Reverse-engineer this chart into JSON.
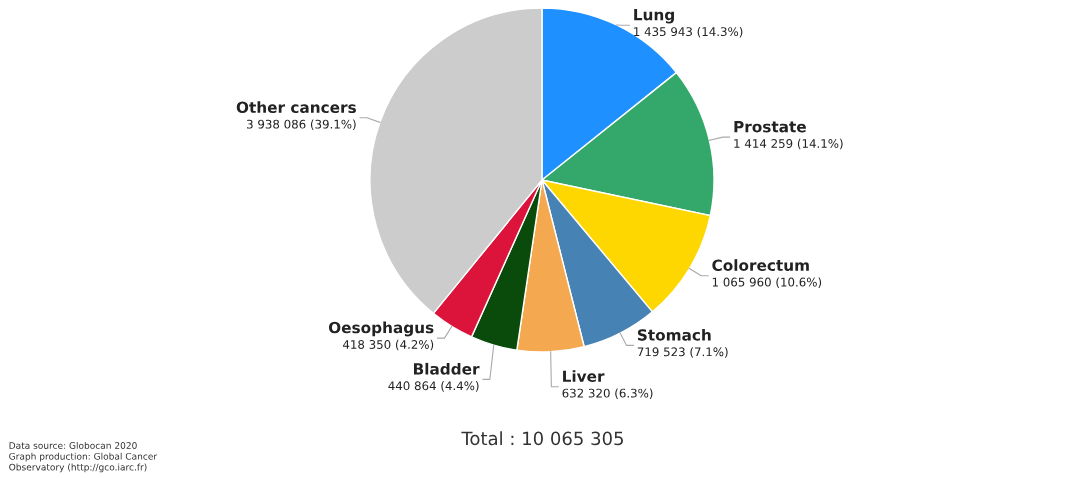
{
  "chart_data": {
    "type": "pie",
    "categories": [
      "Lung",
      "Prostate",
      "Colorectum",
      "Stomach",
      "Liver",
      "Bladder",
      "Oesophagus",
      "Other cancers"
    ],
    "values": [
      1435943,
      1414259,
      1065960,
      719523,
      632320,
      440864,
      418350,
      3938086
    ],
    "value_labels": [
      "1 435 943 (14.3%)",
      "1 414 259 (14.1%)",
      "1 065 960 (10.6%)",
      "719 523 (7.1%)",
      "632 320 (6.3%)",
      "440 864 (4.4%)",
      "418 350 (4.2%)",
      "3 938 086 (39.1%)"
    ],
    "colors": [
      "#1e90ff",
      "#33a86a",
      "#ffd700",
      "#4682b4",
      "#f4a950",
      "#0a4a0a",
      "#dc143c",
      "#cccccc"
    ],
    "legend": false,
    "annotations": [
      "Total : 10 065 305",
      "Data source: Globocan 2020\nGraph production: Global Cancer\nObservatory (http://gco.iarc.fr)"
    ]
  }
}
